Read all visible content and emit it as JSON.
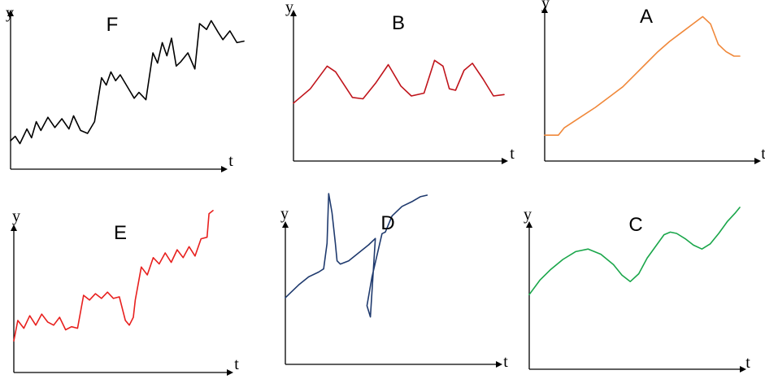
{
  "panels": [
    {
      "label": "F",
      "color": "#000000",
      "xlabel": "t",
      "ylabel": "y",
      "chart_data": {
        "type": "line",
        "xlim": [
          0,
          10
        ],
        "ylim": [
          0,
          10
        ],
        "x": [
          0,
          0.2,
          0.4,
          0.7,
          0.9,
          1.1,
          1.3,
          1.6,
          1.9,
          2.2,
          2.5,
          2.7,
          3.0,
          3.3,
          3.6,
          3.9,
          4.1,
          4.3,
          4.5,
          4.7,
          5.0,
          5.3,
          5.5,
          5.8,
          6.1,
          6.3,
          6.5,
          6.7,
          6.9,
          7.1,
          7.3,
          7.6,
          7.9,
          8.1,
          8.4,
          8.6,
          8.9,
          9.1,
          9.4,
          9.7,
          10
        ],
        "y": [
          1.5,
          1.8,
          1.3,
          2.3,
          1.7,
          2.8,
          2.2,
          3.1,
          2.4,
          3.0,
          2.3,
          3.2,
          2.2,
          2.0,
          2.8,
          5.8,
          5.3,
          6.2,
          5.6,
          6.0,
          5.2,
          4.4,
          4.8,
          4.3,
          7.5,
          6.8,
          8.2,
          7.3,
          8.5,
          6.6,
          6.9,
          7.5,
          6.4,
          9.5,
          9.1,
          9.7,
          8.9,
          8.4,
          9.0,
          8.2,
          8.3
        ]
      }
    },
    {
      "label": "B",
      "color": "#c0141b",
      "xlabel": "t",
      "ylabel": "y",
      "chart_data": {
        "type": "line",
        "xlim": [
          0,
          10
        ],
        "ylim": [
          0,
          10
        ],
        "x": [
          0,
          0.8,
          1.6,
          2.0,
          2.8,
          3.3,
          3.9,
          4.5,
          5.1,
          5.6,
          6.2,
          6.7,
          7.1,
          7.4,
          7.7,
          8.1,
          8.5,
          9.0,
          9.5,
          10
        ],
        "y": [
          3.9,
          4.9,
          6.5,
          6.1,
          4.3,
          4.2,
          5.3,
          6.6,
          5.1,
          4.4,
          4.6,
          6.9,
          6.5,
          4.9,
          4.8,
          6.2,
          6.7,
          5.6,
          4.4,
          4.5
        ]
      }
    },
    {
      "label": "A",
      "color": "#f0883a",
      "xlabel": "t",
      "ylabel": "y",
      "chart_data": {
        "type": "line",
        "xlim": [
          0,
          10
        ],
        "ylim": [
          0,
          10
        ],
        "x": [
          0,
          0.7,
          1.0,
          1.8,
          2.6,
          3.4,
          4.0,
          4.6,
          5.2,
          5.8,
          6.4,
          7.0,
          7.6,
          8.1,
          8.5,
          8.9,
          9.3,
          9.7,
          10
        ],
        "y": [
          1.6,
          1.6,
          2.1,
          2.8,
          3.5,
          4.3,
          4.9,
          5.7,
          6.5,
          7.3,
          8.0,
          8.6,
          9.2,
          9.7,
          9.2,
          7.8,
          7.3,
          7.0,
          7.0
        ]
      }
    },
    {
      "label": "E",
      "color": "#e8201e",
      "xlabel": "t",
      "ylabel": "y",
      "chart_data": {
        "type": "line",
        "xlim": [
          0,
          10
        ],
        "ylim": [
          0,
          10
        ],
        "x": [
          0,
          0.2,
          0.5,
          0.8,
          1.1,
          1.4,
          1.7,
          2.0,
          2.3,
          2.6,
          2.9,
          3.2,
          3.5,
          3.8,
          4.1,
          4.4,
          4.7,
          5.0,
          5.3,
          5.6,
          5.8,
          6.0,
          6.1,
          6.4,
          6.7,
          7.0,
          7.3,
          7.6,
          7.9,
          8.2,
          8.5,
          8.8,
          9.1,
          9.4,
          9.7,
          9.8,
          10
        ],
        "y": [
          1.5,
          2.8,
          2.3,
          3.1,
          2.5,
          3.2,
          2.7,
          2.5,
          3.0,
          2.2,
          2.4,
          2.3,
          4.4,
          4.1,
          4.5,
          4.2,
          4.6,
          4.2,
          4.3,
          2.8,
          2.5,
          3.0,
          4.1,
          6.2,
          5.7,
          6.8,
          6.4,
          7.1,
          6.5,
          7.3,
          6.8,
          7.5,
          6.9,
          8.0,
          8.1,
          9.6,
          9.8
        ]
      }
    },
    {
      "label": "D",
      "color": "#1f3a6e",
      "xlabel": "t",
      "ylabel": "y",
      "chart_data": {
        "type": "line",
        "xlim": [
          0,
          10
        ],
        "ylim": [
          0,
          10
        ],
        "x": [
          0,
          0.8,
          1.4,
          2.0,
          2.3,
          2.5,
          2.6,
          2.8,
          3.0,
          3.1,
          3.3,
          3.8,
          4.4,
          5.0,
          5.4,
          5.1,
          4.9,
          5.2,
          5.8,
          6.0,
          6.4,
          7.0,
          7.6,
          8.1,
          8.5
        ],
        "y": [
          3.5,
          4.3,
          4.8,
          5.1,
          5.3,
          6.9,
          10.0,
          8.8,
          6.9,
          5.8,
          5.6,
          5.8,
          6.3,
          6.8,
          7.2,
          2.3,
          3.0,
          4.8,
          7.5,
          7.6,
          8.6,
          9.2,
          9.5,
          9.8,
          9.9
        ]
      }
    },
    {
      "label": "C",
      "color": "#1aa64a",
      "xlabel": "t",
      "ylabel": "y",
      "chart_data": {
        "type": "line",
        "xlim": [
          0,
          10
        ],
        "ylim": [
          0,
          10
        ],
        "x": [
          0,
          0.5,
          1.0,
          1.6,
          2.2,
          2.8,
          3.4,
          4.0,
          4.4,
          4.8,
          5.2,
          5.6,
          6.0,
          6.4,
          6.7,
          7.0,
          7.4,
          7.8,
          8.2,
          8.6,
          9.0,
          9.4,
          9.8,
          10
        ],
        "y": [
          3.3,
          4.4,
          5.2,
          6.0,
          6.6,
          6.8,
          6.4,
          5.6,
          4.8,
          4.3,
          4.9,
          6.1,
          7.0,
          7.9,
          8.1,
          8.0,
          7.6,
          7.1,
          6.8,
          7.2,
          8.0,
          8.9,
          9.6,
          10.0
        ]
      }
    }
  ]
}
